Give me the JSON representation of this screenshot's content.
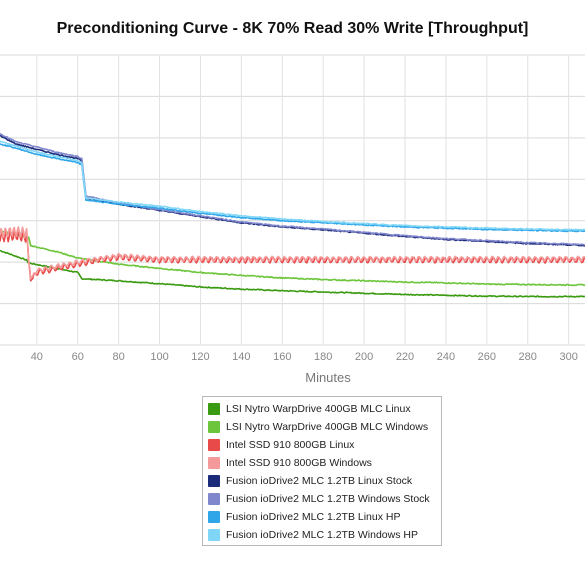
{
  "chart_data": {
    "type": "line",
    "title": "Preconditioning Curve - 8K 70% Read 30% Write [Throughput]",
    "xlabel": "Minutes",
    "ylabel": "",
    "xlim": [
      22,
      308
    ],
    "ylim": [
      0,
      7
    ],
    "x_ticks": [
      40,
      60,
      80,
      100,
      120,
      140,
      160,
      180,
      200,
      220,
      240,
      260,
      280,
      300
    ],
    "grid": true,
    "legend_position": "bottom",
    "series": [
      {
        "name": "LSI Nytro WarpDrive 400GB MLC Linux",
        "color": "#3a9a10",
        "x": [
          22,
          35,
          36,
          60,
          62,
          80,
          100,
          120,
          140,
          160,
          180,
          200,
          220,
          240,
          260,
          280,
          300,
          308
        ],
        "y": [
          2.28,
          2.05,
          1.98,
          1.75,
          1.6,
          1.55,
          1.48,
          1.4,
          1.35,
          1.31,
          1.28,
          1.25,
          1.22,
          1.2,
          1.18,
          1.17,
          1.17,
          1.17
        ]
      },
      {
        "name": "LSI Nytro WarpDrive 400GB MLC Windows",
        "color": "#6cc53a",
        "x": [
          22,
          36,
          37,
          50,
          60,
          80,
          100,
          120,
          140,
          160,
          180,
          200,
          220,
          240,
          260,
          280,
          300,
          308
        ],
        "y": [
          2.75,
          2.6,
          2.4,
          2.25,
          2.1,
          1.95,
          1.85,
          1.75,
          1.68,
          1.62,
          1.58,
          1.55,
          1.52,
          1.5,
          1.47,
          1.46,
          1.45,
          1.45
        ]
      },
      {
        "name": "Intel SSD 910 800GB Linux",
        "color": "#e84a4a",
        "x": [
          22,
          30,
          35,
          37,
          40,
          50,
          60,
          70,
          80,
          100,
          140,
          200,
          260,
          308
        ],
        "y": [
          2.6,
          2.65,
          2.6,
          1.55,
          1.75,
          1.85,
          1.95,
          2.05,
          2.12,
          2.05,
          2.05,
          2.05,
          2.05,
          2.05
        ],
        "osc": 0.06
      },
      {
        "name": "Intel SSD 910 800GB Windows",
        "color": "#f59a9a",
        "x": [
          22,
          30,
          35,
          37,
          40,
          50,
          60,
          70,
          80,
          100,
          140,
          200,
          260,
          308
        ],
        "y": [
          2.7,
          2.75,
          2.7,
          1.6,
          1.8,
          1.9,
          2.0,
          2.08,
          2.15,
          2.08,
          2.08,
          2.08,
          2.08,
          2.08
        ],
        "osc": 0.05
      },
      {
        "name": "Fusion ioDrive2 MLC 1.2TB Linux Stock",
        "color": "#1c2a7a",
        "x": [
          22,
          30,
          40,
          50,
          60,
          62,
          64,
          80,
          100,
          120,
          140,
          160,
          180,
          200,
          220,
          240,
          260,
          280,
          300,
          308
        ],
        "y": [
          5.05,
          4.85,
          4.72,
          4.6,
          4.5,
          4.45,
          3.55,
          3.4,
          3.25,
          3.1,
          2.95,
          2.85,
          2.78,
          2.7,
          2.62,
          2.55,
          2.5,
          2.45,
          2.42,
          2.4
        ]
      },
      {
        "name": "Fusion ioDrive2 MLC 1.2TB Windows Stock",
        "color": "#8187cc",
        "x": [
          22,
          30,
          40,
          50,
          60,
          62,
          64,
          80,
          100,
          120,
          140,
          160,
          180,
          200,
          220,
          240,
          260,
          280,
          300,
          308
        ],
        "y": [
          5.1,
          4.9,
          4.78,
          4.65,
          4.55,
          4.5,
          3.6,
          3.42,
          3.27,
          3.12,
          2.97,
          2.87,
          2.8,
          2.72,
          2.64,
          2.57,
          2.52,
          2.47,
          2.44,
          2.42
        ]
      },
      {
        "name": "Fusion ioDrive2 MLC 1.2TB Linux HP",
        "color": "#2fa6e8",
        "x": [
          22,
          30,
          40,
          50,
          60,
          62,
          64,
          80,
          100,
          120,
          140,
          160,
          180,
          200,
          220,
          240,
          260,
          280,
          300,
          308
        ],
        "y": [
          4.85,
          4.75,
          4.6,
          4.5,
          4.4,
          4.35,
          3.5,
          3.4,
          3.3,
          3.18,
          3.08,
          3.0,
          2.95,
          2.9,
          2.85,
          2.82,
          2.79,
          2.77,
          2.75,
          2.75
        ]
      },
      {
        "name": "Fusion ioDrive2 MLC 1.2TB Windows HP",
        "color": "#7fd6f7",
        "x": [
          22,
          30,
          40,
          50,
          60,
          62,
          64,
          80,
          100,
          120,
          140,
          160,
          180,
          200,
          220,
          240,
          260,
          280,
          300,
          308
        ],
        "y": [
          4.92,
          4.8,
          4.66,
          4.55,
          4.45,
          4.4,
          3.55,
          3.45,
          3.35,
          3.22,
          3.12,
          3.04,
          2.98,
          2.93,
          2.88,
          2.85,
          2.82,
          2.8,
          2.78,
          2.78
        ]
      }
    ]
  }
}
